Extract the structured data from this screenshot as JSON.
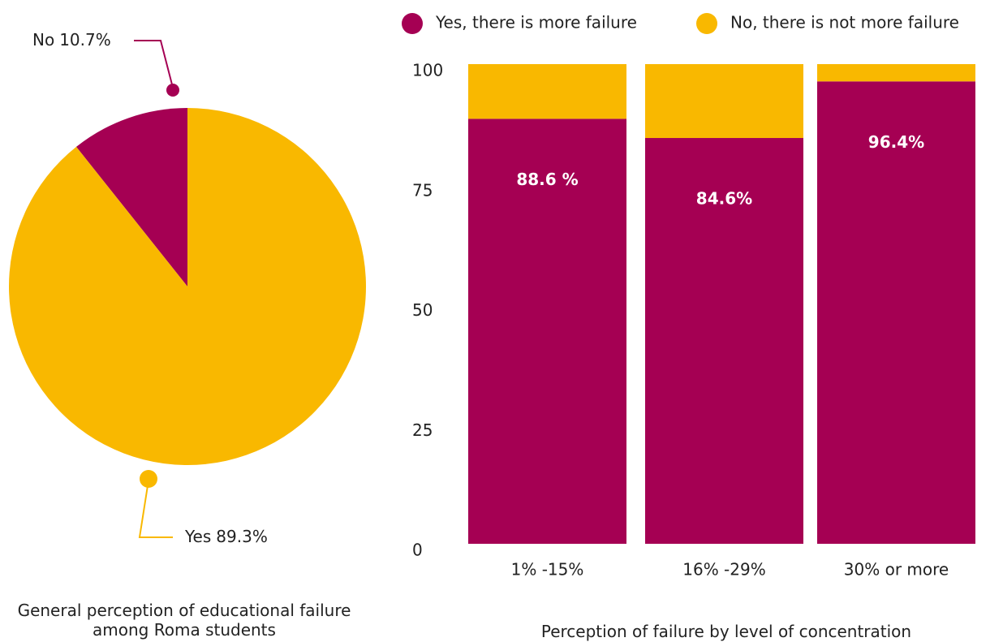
{
  "chart_data": [
    {
      "type": "pie",
      "title": "General perception of educational failure among Roma students",
      "categories": [
        "No",
        "Yes"
      ],
      "values": [
        10.7,
        89.3
      ],
      "value_labels": [
        "10.7%",
        "89.3%"
      ],
      "colors": [
        "#a50053",
        "#f9b800"
      ]
    },
    {
      "type": "bar",
      "stacked": true,
      "title": "Perception of failure by level of concentration",
      "categories": [
        "1% -15%",
        "16% -29%",
        "30% or more"
      ],
      "series": [
        {
          "name": "Yes, there is more failure",
          "color": "#a50053",
          "values": [
            88.6,
            84.6,
            96.4
          ],
          "value_labels": [
            "88.6 %",
            "84.6%",
            "96.4%"
          ]
        },
        {
          "name": "No, there is not more failure",
          "color": "#f9b800",
          "values": [
            11.4,
            15.4,
            3.6
          ]
        }
      ],
      "ylim": [
        0,
        100
      ],
      "yticks": [
        0,
        25,
        50,
        75,
        100
      ],
      "grid": false,
      "legend": "top"
    }
  ]
}
